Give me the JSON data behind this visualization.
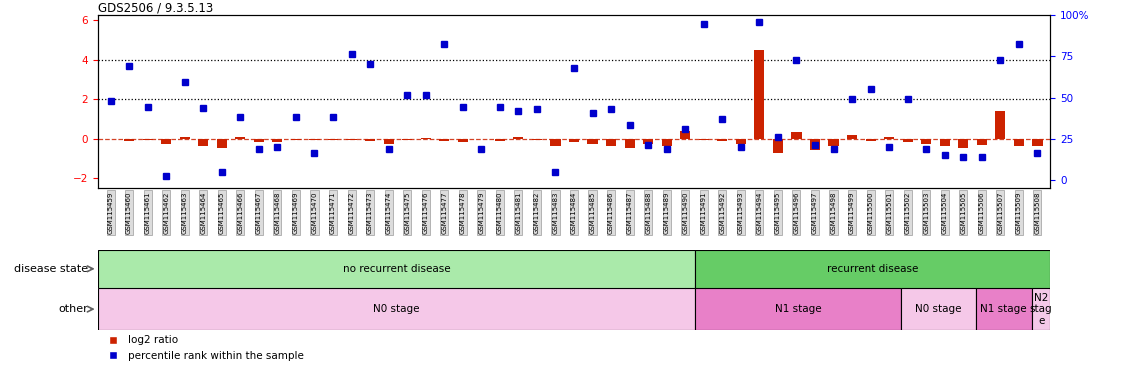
{
  "title": "GDS2506 / 9.3.5.13",
  "samples": [
    "GSM115459",
    "GSM115460",
    "GSM115461",
    "GSM115462",
    "GSM115463",
    "GSM115464",
    "GSM115465",
    "GSM115466",
    "GSM115467",
    "GSM115468",
    "GSM115469",
    "GSM115470",
    "GSM115471",
    "GSM115472",
    "GSM115473",
    "GSM115474",
    "GSM115475",
    "GSM115476",
    "GSM115477",
    "GSM115478",
    "GSM115479",
    "GSM115480",
    "GSM115481",
    "GSM115482",
    "GSM115483",
    "GSM115484",
    "GSM115485",
    "GSM115486",
    "GSM115487",
    "GSM115488",
    "GSM115489",
    "GSM115490",
    "GSM115491",
    "GSM115492",
    "GSM115493",
    "GSM115494",
    "GSM115495",
    "GSM115496",
    "GSM115497",
    "GSM115498",
    "GSM115499",
    "GSM115500",
    "GSM115501",
    "GSM115502",
    "GSM115503",
    "GSM115504",
    "GSM115505",
    "GSM115506",
    "GSM115507",
    "GSM115509",
    "GSM115508"
  ],
  "log2_ratio": [
    0.0,
    -0.12,
    -0.05,
    -0.28,
    0.08,
    -0.38,
    -0.48,
    0.08,
    -0.18,
    -0.15,
    -0.08,
    -0.05,
    -0.08,
    -0.05,
    -0.1,
    -0.28,
    -0.05,
    0.05,
    -0.1,
    -0.18,
    0.0,
    -0.1,
    0.08,
    -0.05,
    -0.38,
    -0.18,
    -0.28,
    -0.38,
    -0.45,
    -0.25,
    -0.38,
    0.38,
    -0.05,
    -0.1,
    -0.28,
    4.5,
    -0.72,
    0.32,
    -0.55,
    -0.38,
    0.18,
    -0.1,
    0.08,
    -0.18,
    -0.28,
    -0.38,
    -0.45,
    -0.3,
    1.4,
    -0.38,
    -0.38
  ],
  "percentile_left": [
    1.9,
    3.7,
    1.6,
    -1.9,
    2.9,
    1.55,
    -1.7,
    1.1,
    -0.5,
    -0.4,
    1.1,
    -0.7,
    1.1,
    4.3,
    3.8,
    -0.5,
    2.2,
    2.2,
    4.8,
    1.6,
    -0.5,
    1.6,
    1.4,
    1.5,
    -1.7,
    3.6,
    1.3,
    1.5,
    0.7,
    -0.3,
    -0.5,
    0.5,
    5.8,
    1.0,
    -0.4,
    5.9,
    0.1,
    4.0,
    -0.3,
    -0.5,
    2.0,
    2.5,
    -0.4,
    2.0,
    -0.5,
    -0.8,
    -0.9,
    -0.9,
    4.0,
    4.8,
    -0.7
  ],
  "disease_state_segments": [
    {
      "label": "no recurrent disease",
      "start": 0,
      "end": 32,
      "color": "#aaeaaa"
    },
    {
      "label": "recurrent disease",
      "start": 32,
      "end": 51,
      "color": "#66cc66"
    }
  ],
  "other_segments": [
    {
      "label": "N0 stage",
      "start": 0,
      "end": 32,
      "color": "#f5c8e8"
    },
    {
      "label": "N1 stage",
      "start": 32,
      "end": 43,
      "color": "#e880c8"
    },
    {
      "label": "N0 stage",
      "start": 43,
      "end": 47,
      "color": "#f5c8e8"
    },
    {
      "label": "N1 stage",
      "start": 47,
      "end": 50,
      "color": "#e880c8"
    },
    {
      "label": "N2\nstag\ne",
      "start": 50,
      "end": 51,
      "color": "#f5c8e8"
    }
  ],
  "bar_color": "#cc2200",
  "dot_color": "#0000cc",
  "left_ylim": [
    -2.5,
    6.25
  ],
  "left_yticks": [
    -2,
    0,
    2,
    4,
    6
  ],
  "right_yticks_labels": [
    "0",
    "25",
    "50",
    "75",
    "100%"
  ],
  "right_yticks_pos": [
    -2.083,
    0.0,
    2.083,
    4.167,
    6.25
  ],
  "dotted_lines": [
    4.0,
    2.0
  ],
  "dashed_line_y": 0.0
}
